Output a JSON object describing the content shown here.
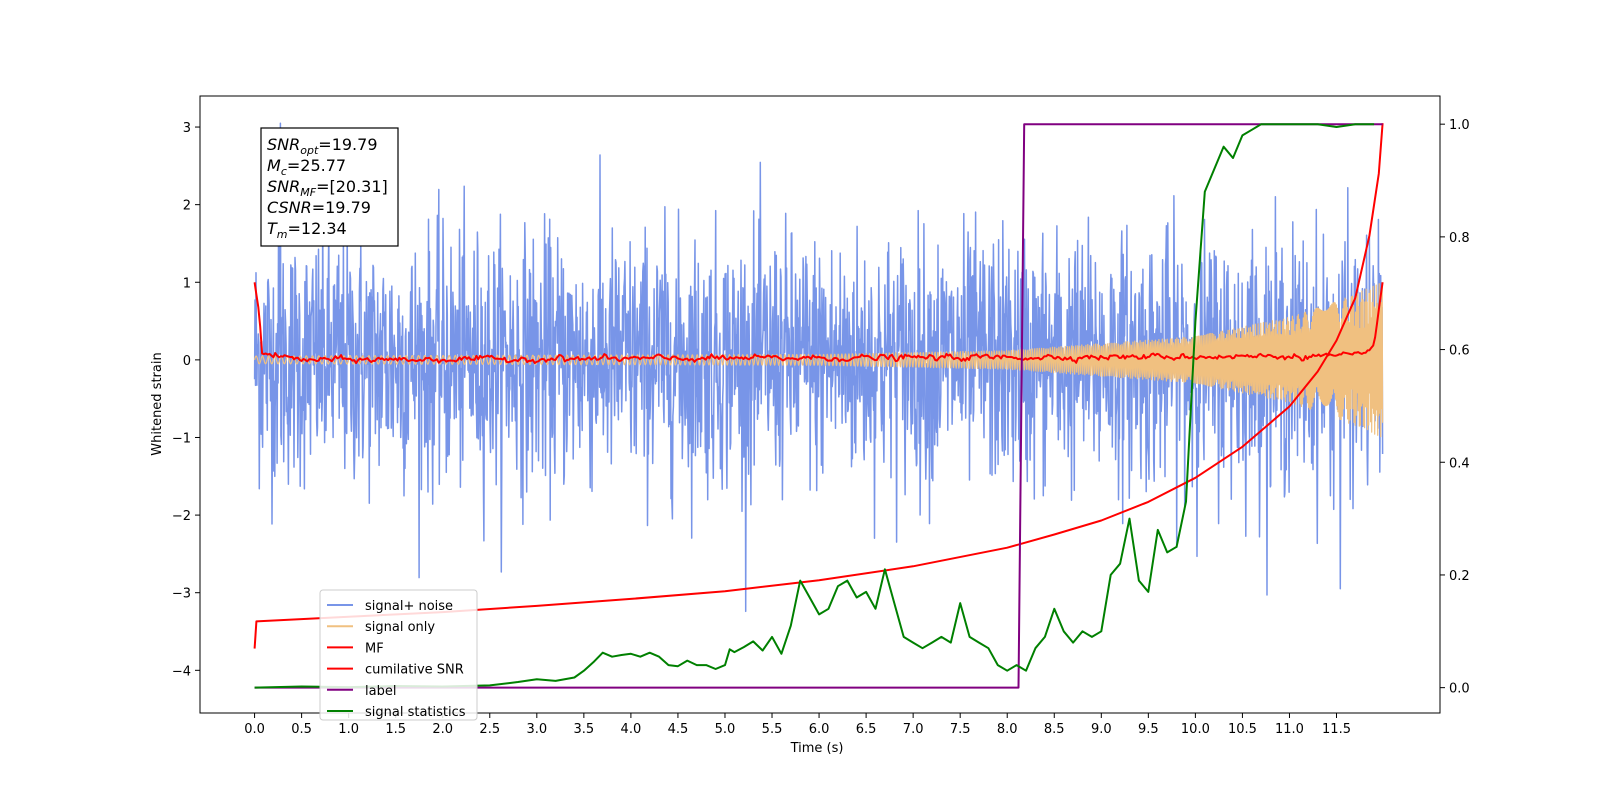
{
  "chart_data": {
    "type": "line",
    "title": "",
    "xlabel": "Time (s)",
    "ylabel": "Whitened strain",
    "ylabel_right": "",
    "xlim": [
      -0.58,
      12.6
    ],
    "ylim": [
      -4.55,
      3.4
    ],
    "ylim_right": [
      -0.045,
      1.05
    ],
    "x_ticks": [
      "0.0",
      "0.5",
      "1.0",
      "1.5",
      "2.0",
      "2.5",
      "3.0",
      "3.5",
      "4.0",
      "4.5",
      "5.0",
      "5.5",
      "6.0",
      "6.5",
      "7.0",
      "7.5",
      "8.0",
      "8.5",
      "9.0",
      "9.5",
      "10.0",
      "10.5",
      "11.0",
      "11.5"
    ],
    "y_ticks": [
      "3",
      "2",
      "1",
      "0",
      "−1",
      "−2",
      "−3",
      "−4"
    ],
    "y_ticks_right": [
      "1.0",
      "0.8",
      "0.6",
      "0.4",
      "0.2",
      "0.0"
    ],
    "grid": false,
    "legend_position": "lower-left",
    "annotation": [
      {
        "base": "SNR",
        "sub": "opt",
        "value": "=19.79"
      },
      {
        "base": "M",
        "sub": "c",
        "value": "=25.77"
      },
      {
        "base": "SNR",
        "sub": "MF",
        "value": "=[20.31]"
      },
      {
        "base": "CSNR",
        "sub": "",
        "value": "=19.79"
      },
      {
        "base": "T",
        "sub": "m",
        "value": "=12.34"
      }
    ],
    "series": [
      {
        "name": "signal+ noise",
        "axis": "left",
        "color": "#7895e8",
        "kind": "noise",
        "envelope": [
          [
            0.0,
            1.3
          ],
          [
            11.99,
            1.3
          ]
        ],
        "range_max": [
          3.05,
          -2.95
        ]
      },
      {
        "name": "signal only",
        "axis": "left",
        "color": "#f0c080",
        "kind": "chirp",
        "amplitude": [
          [
            0.0,
            0.05
          ],
          [
            6.0,
            0.07
          ],
          [
            8.0,
            0.12
          ],
          [
            10.0,
            0.3
          ],
          [
            11.0,
            0.55
          ],
          [
            11.5,
            0.75
          ],
          [
            11.99,
            1.0
          ]
        ]
      },
      {
        "name": "MF",
        "axis": "left",
        "color": "#ff0000",
        "kind": "mf",
        "points": [
          [
            0.0,
            1.0
          ],
          [
            0.05,
            0.6
          ],
          [
            0.08,
            0.08
          ],
          [
            0.5,
            0.0
          ],
          [
            11.8,
            0.05
          ],
          [
            11.9,
            0.2
          ],
          [
            11.99,
            1.0
          ]
        ]
      },
      {
        "name": "cumilative SNR",
        "axis": "left",
        "color": "#ff0000",
        "kind": "line",
        "points": [
          [
            0.0,
            -3.72
          ],
          [
            0.02,
            -3.37
          ],
          [
            1.0,
            -3.31
          ],
          [
            2.0,
            -3.25
          ],
          [
            3.0,
            -3.17
          ],
          [
            4.0,
            -3.08
          ],
          [
            5.0,
            -2.98
          ],
          [
            6.0,
            -2.84
          ],
          [
            7.0,
            -2.66
          ],
          [
            8.0,
            -2.42
          ],
          [
            8.5,
            -2.25
          ],
          [
            9.0,
            -2.07
          ],
          [
            9.5,
            -1.83
          ],
          [
            10.0,
            -1.52
          ],
          [
            10.5,
            -1.12
          ],
          [
            11.0,
            -0.6
          ],
          [
            11.3,
            -0.15
          ],
          [
            11.5,
            0.25
          ],
          [
            11.7,
            0.8
          ],
          [
            11.85,
            1.6
          ],
          [
            11.95,
            2.4
          ],
          [
            11.99,
            3.05
          ]
        ]
      },
      {
        "name": "label",
        "axis": "right",
        "color": "#800080",
        "kind": "line",
        "points": [
          [
            0.0,
            0.0
          ],
          [
            8.12,
            0.0
          ],
          [
            8.18,
            1.0
          ],
          [
            11.99,
            1.0
          ]
        ]
      },
      {
        "name": "signal statistics",
        "axis": "right",
        "color": "#008000",
        "kind": "line",
        "points": [
          [
            0.0,
            0.0
          ],
          [
            0.5,
            0.002
          ],
          [
            1.0,
            0.001
          ],
          [
            1.5,
            0.003
          ],
          [
            2.0,
            0.002
          ],
          [
            2.5,
            0.004
          ],
          [
            2.8,
            0.01
          ],
          [
            3.0,
            0.015
          ],
          [
            3.2,
            0.012
          ],
          [
            3.4,
            0.018
          ],
          [
            3.5,
            0.03
          ],
          [
            3.6,
            0.045
          ],
          [
            3.7,
            0.062
          ],
          [
            3.8,
            0.055
          ],
          [
            3.9,
            0.058
          ],
          [
            4.0,
            0.06
          ],
          [
            4.1,
            0.055
          ],
          [
            4.2,
            0.062
          ],
          [
            4.3,
            0.055
          ],
          [
            4.4,
            0.04
          ],
          [
            4.5,
            0.038
          ],
          [
            4.6,
            0.048
          ],
          [
            4.7,
            0.04
          ],
          [
            4.8,
            0.04
          ],
          [
            4.9,
            0.033
          ],
          [
            5.0,
            0.04
          ],
          [
            5.05,
            0.068
          ],
          [
            5.1,
            0.063
          ],
          [
            5.2,
            0.072
          ],
          [
            5.3,
            0.082
          ],
          [
            5.4,
            0.066
          ],
          [
            5.5,
            0.09
          ],
          [
            5.6,
            0.06
          ],
          [
            5.7,
            0.11
          ],
          [
            5.8,
            0.19
          ],
          [
            5.9,
            0.16
          ],
          [
            6.0,
            0.13
          ],
          [
            6.1,
            0.14
          ],
          [
            6.2,
            0.18
          ],
          [
            6.3,
            0.19
          ],
          [
            6.4,
            0.16
          ],
          [
            6.5,
            0.17
          ],
          [
            6.6,
            0.14
          ],
          [
            6.7,
            0.21
          ],
          [
            6.8,
            0.15
          ],
          [
            6.9,
            0.09
          ],
          [
            7.0,
            0.08
          ],
          [
            7.1,
            0.07
          ],
          [
            7.2,
            0.08
          ],
          [
            7.3,
            0.09
          ],
          [
            7.4,
            0.08
          ],
          [
            7.5,
            0.15
          ],
          [
            7.6,
            0.09
          ],
          [
            7.7,
            0.08
          ],
          [
            7.8,
            0.07
          ],
          [
            7.9,
            0.04
          ],
          [
            8.0,
            0.03
          ],
          [
            8.1,
            0.04
          ],
          [
            8.2,
            0.03
          ],
          [
            8.3,
            0.07
          ],
          [
            8.4,
            0.09
          ],
          [
            8.5,
            0.14
          ],
          [
            8.6,
            0.1
          ],
          [
            8.7,
            0.08
          ],
          [
            8.8,
            0.1
          ],
          [
            8.9,
            0.09
          ],
          [
            9.0,
            0.1
          ],
          [
            9.1,
            0.2
          ],
          [
            9.2,
            0.22
          ],
          [
            9.3,
            0.3
          ],
          [
            9.4,
            0.19
          ],
          [
            9.5,
            0.17
          ],
          [
            9.6,
            0.28
          ],
          [
            9.7,
            0.24
          ],
          [
            9.8,
            0.25
          ],
          [
            9.9,
            0.33
          ],
          [
            10.0,
            0.65
          ],
          [
            10.1,
            0.88
          ],
          [
            10.2,
            0.92
          ],
          [
            10.3,
            0.96
          ],
          [
            10.4,
            0.94
          ],
          [
            10.5,
            0.98
          ],
          [
            10.6,
            0.99
          ],
          [
            10.7,
            1.0
          ],
          [
            10.9,
            1.0
          ],
          [
            11.1,
            1.0
          ],
          [
            11.3,
            1.0
          ],
          [
            11.5,
            0.995
          ],
          [
            11.7,
            1.0
          ],
          [
            11.9,
            1.0
          ]
        ]
      }
    ]
  }
}
